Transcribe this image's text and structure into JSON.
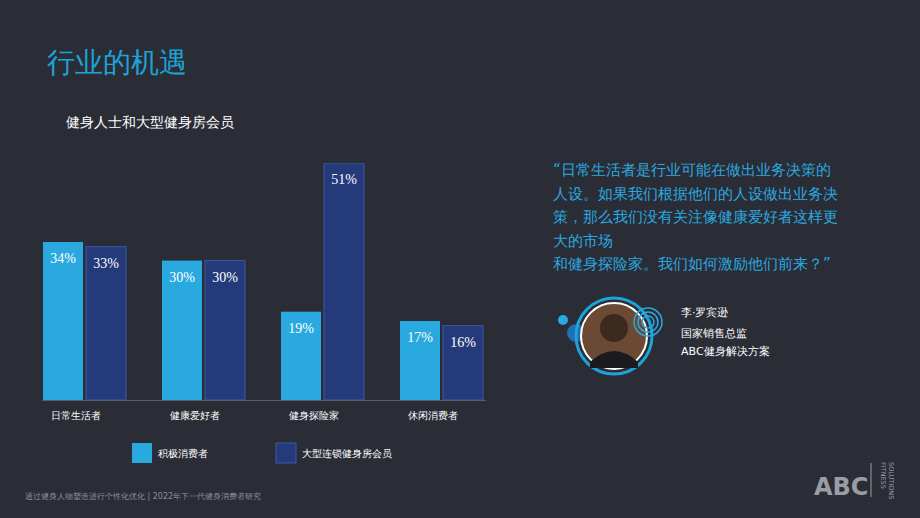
{
  "chart_data": {
    "type": "bar",
    "title": "健身人士和大型健身房会员",
    "categories": [
      "日常生活者",
      "健康爱好者",
      "健身探险家",
      "休闲消费者"
    ],
    "series": [
      {
        "name": "积极消费者",
        "color": "#29a9e0",
        "values": [
          34,
          30,
          19,
          17
        ],
        "value_labels": [
          "34%",
          "30%",
          "19%",
          "17%"
        ]
      },
      {
        "name": "大型连锁健身房会员",
        "color": "#243a7a",
        "values": [
          33,
          30,
          51,
          16
        ],
        "value_labels": [
          "33%",
          "30%",
          "51%",
          "16%"
        ]
      }
    ],
    "ylim": [
      0,
      51
    ],
    "grid": false,
    "legend": "bottom",
    "data_labels": true,
    "tick_labels": "x"
  },
  "page": {
    "title": "行业的机遇",
    "quote_lines": [
      "“日常生活者是行业可能在做出业务决策的",
      "人设。如果我们根据他们的人设做出业务决",
      "策，那么我们没有关注像健康爱好者这样更",
      "大的市场",
      "和健身探险家。我们如何激励他们前来？”"
    ],
    "person": {
      "name": "李·罗宾逊",
      "role": "国家销售总监",
      "company": "ABC健身解决方案"
    },
    "footer": "通过健身人物塑造进行个性化优化 | 2022年下一代健身消费者研究",
    "logo": "ABC",
    "logo_sub": [
      "FITNESS",
      "SOLUTIONS"
    ]
  }
}
